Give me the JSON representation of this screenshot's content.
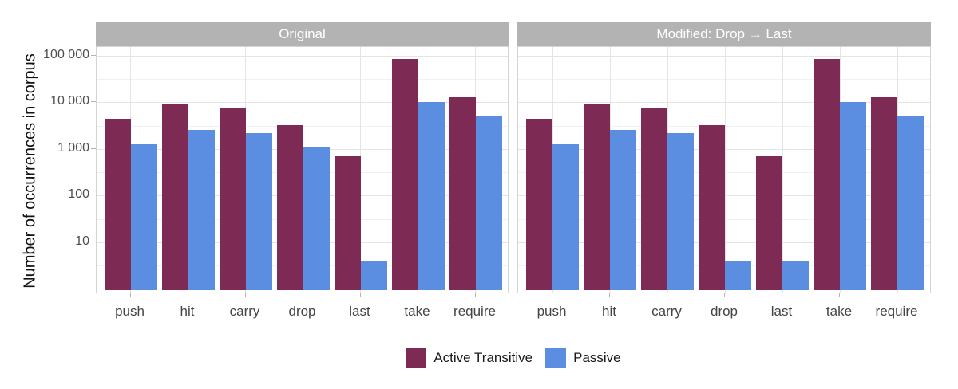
{
  "chart_data": {
    "type": "bar",
    "orientation": "vertical",
    "y_scale": "log10",
    "ylabel": "Number of occurrences in corpus",
    "xlabel": "",
    "categories": [
      "push",
      "hit",
      "carry",
      "drop",
      "last",
      "take",
      "require"
    ],
    "y_ticks": [
      {
        "value": 10,
        "label": "10"
      },
      {
        "value": 100,
        "label": "100"
      },
      {
        "value": 1000,
        "label": "1 000"
      },
      {
        "value": 10000,
        "label": "10 000"
      },
      {
        "value": 100000,
        "label": "100 000"
      }
    ],
    "ylim": [
      1,
      150000
    ],
    "grid": {
      "major": true,
      "minor": true
    },
    "panels": [
      {
        "title": "Original",
        "series": [
          {
            "name": "Active Transitive",
            "values": [
              4500,
              9300,
              7600,
              3200,
              700,
              83000,
              13000
            ]
          },
          {
            "name": "Passive",
            "values": [
              1250,
              2500,
              2200,
              1100,
              4,
              10000,
              5200
            ]
          }
        ]
      },
      {
        "title": "Modified: Drop → Last",
        "series": [
          {
            "name": "Active Transitive",
            "values": [
              4500,
              9300,
              7600,
              3200,
              700,
              83000,
              13000
            ]
          },
          {
            "name": "Passive",
            "values": [
              1250,
              2500,
              2200,
              4,
              4,
              10000,
              5200
            ]
          }
        ]
      }
    ],
    "series_colors": {
      "Active Transitive": "#7d2a54",
      "Passive": "#5b8de1"
    },
    "legend": {
      "position": "bottom",
      "entries": [
        {
          "label": "Active Transitive",
          "color": "#7d2a54"
        },
        {
          "label": "Passive",
          "color": "#5b8de1"
        }
      ]
    },
    "strip_color": "#b3b3b3",
    "strip_text_color": "#ffffff"
  }
}
